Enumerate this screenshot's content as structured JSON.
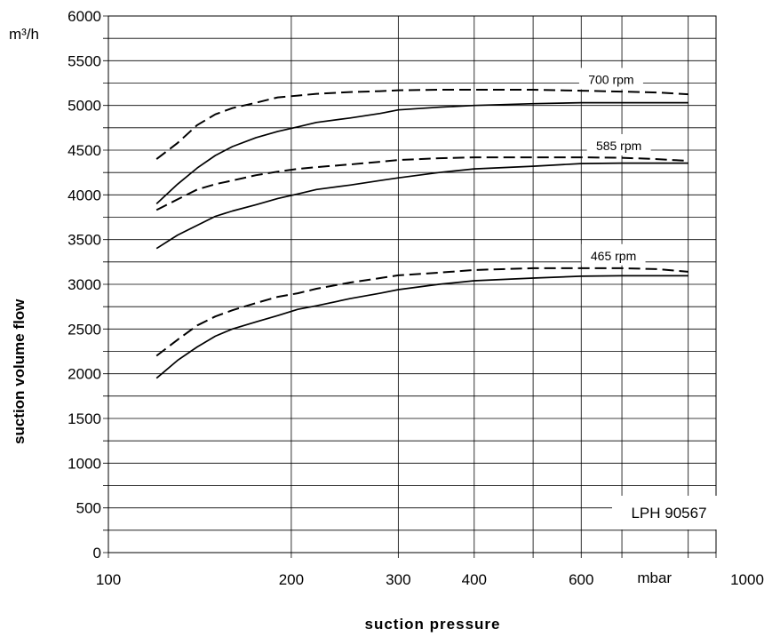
{
  "chart_data": {
    "type": "line",
    "x_scale": "log",
    "xlim": [
      100,
      1000
    ],
    "ylim": [
      0,
      6000
    ],
    "grid": true,
    "xlabel": "suction pressure",
    "ylabel": "suction volume flow",
    "y_unit": "m³/h",
    "x_unit": "mbar",
    "x_unit_position_value": 800,
    "x_ticks": [
      100,
      200,
      300,
      400,
      600,
      1000
    ],
    "x_minor_grid": [
      500,
      700,
      900
    ],
    "y_ticks": [
      0,
      500,
      1000,
      1500,
      2000,
      2500,
      3000,
      3500,
      4000,
      4500,
      5000,
      5500,
      6000
    ],
    "y_minor_grid": [
      250,
      750,
      1250,
      1750,
      2250,
      2750,
      3250,
      3750,
      4250,
      4750,
      5250,
      5750
    ],
    "annotation": "LPH 90567",
    "series": [
      {
        "label": "700 rpm",
        "style": "dashed",
        "x": [
          120,
          130,
          140,
          150,
          160,
          175,
          190,
          205,
          220,
          250,
          280,
          300,
          350,
          400,
          500,
          600,
          700,
          800,
          900
        ],
        "y": [
          4400,
          4580,
          4780,
          4900,
          4970,
          5030,
          5090,
          5110,
          5130,
          5150,
          5160,
          5170,
          5175,
          5175,
          5175,
          5165,
          5155,
          5145,
          5125
        ]
      },
      {
        "style": "solid",
        "x": [
          120,
          130,
          140,
          150,
          160,
          175,
          190,
          205,
          220,
          250,
          280,
          300,
          350,
          400,
          500,
          600,
          700,
          800,
          900
        ],
        "y": [
          3900,
          4120,
          4300,
          4440,
          4540,
          4640,
          4710,
          4760,
          4810,
          4860,
          4910,
          4950,
          4980,
          5000,
          5020,
          5030,
          5030,
          5030,
          5030
        ]
      },
      {
        "label": "585 rpm",
        "style": "dashed",
        "x": [
          120,
          130,
          140,
          150,
          160,
          175,
          190,
          205,
          220,
          250,
          280,
          300,
          350,
          400,
          500,
          600,
          700,
          800,
          900
        ],
        "y": [
          3830,
          3950,
          4060,
          4120,
          4160,
          4220,
          4260,
          4290,
          4310,
          4340,
          4370,
          4390,
          4410,
          4420,
          4420,
          4420,
          4415,
          4400,
          4380
        ]
      },
      {
        "style": "solid",
        "x": [
          120,
          130,
          140,
          150,
          160,
          175,
          190,
          205,
          220,
          250,
          280,
          300,
          350,
          400,
          500,
          600,
          700,
          800,
          900
        ],
        "y": [
          3400,
          3550,
          3660,
          3760,
          3820,
          3890,
          3960,
          4010,
          4060,
          4110,
          4160,
          4190,
          4250,
          4290,
          4320,
          4350,
          4355,
          4355,
          4355
        ]
      },
      {
        "label": "465 rpm",
        "style": "dashed",
        "x": [
          120,
          130,
          140,
          150,
          160,
          175,
          190,
          205,
          220,
          250,
          280,
          300,
          350,
          400,
          500,
          600,
          700,
          800,
          900
        ],
        "y": [
          2200,
          2380,
          2540,
          2640,
          2710,
          2790,
          2860,
          2900,
          2950,
          3020,
          3070,
          3100,
          3130,
          3160,
          3180,
          3180,
          3180,
          3170,
          3140
        ]
      },
      {
        "style": "solid",
        "x": [
          120,
          130,
          140,
          150,
          160,
          175,
          190,
          205,
          220,
          250,
          280,
          300,
          350,
          400,
          500,
          600,
          700,
          800,
          900
        ],
        "y": [
          1950,
          2150,
          2300,
          2420,
          2500,
          2580,
          2650,
          2720,
          2760,
          2840,
          2900,
          2940,
          3000,
          3040,
          3070,
          3090,
          3095,
          3095,
          3095
        ]
      }
    ]
  }
}
